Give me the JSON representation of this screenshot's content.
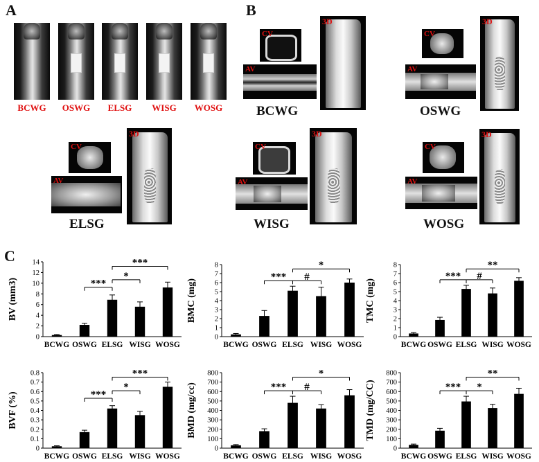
{
  "panels": {
    "a": "A",
    "b": "B",
    "c": "C"
  },
  "xray_groups": [
    "BCWG",
    "OSWG",
    "ELSG",
    "WISG",
    "WOSG"
  ],
  "ct_tags": {
    "cv": "CV",
    "av": "AV",
    "d3": "3D"
  },
  "ct_groups": [
    "BCWG",
    "OSWG",
    "ELSG",
    "WISG",
    "WOSG"
  ],
  "colors": {
    "label_red": "#e01010",
    "bar": "#000000"
  },
  "chart_data": [
    {
      "type": "bar",
      "ylabel": "BV (mm3)",
      "categories": [
        "BCWG",
        "OSWG",
        "ELSG",
        "WISG",
        "WOSG"
      ],
      "values": [
        0.3,
        2.2,
        6.9,
        5.6,
        9.2
      ],
      "errors": [
        0.1,
        0.3,
        0.9,
        0.9,
        1.0
      ],
      "ylim": [
        0,
        14
      ],
      "yticks": [
        0,
        2,
        4,
        6,
        8,
        10,
        12,
        14
      ],
      "ytick_labels": [
        "0",
        "2",
        "4",
        "6",
        "8",
        "10",
        "12",
        "14"
      ],
      "brackets": [
        {
          "from": 1,
          "to": 2,
          "label": "***"
        },
        {
          "from": 2,
          "to": 3,
          "label": "*"
        },
        {
          "from": 2,
          "to": 4,
          "label": "***"
        }
      ]
    },
    {
      "type": "bar",
      "ylabel": "BMC (mg)",
      "categories": [
        "BCWG",
        "OSWG",
        "ELSG",
        "WISG",
        "WOSG"
      ],
      "values": [
        0.25,
        2.3,
        5.1,
        4.5,
        6.0
      ],
      "errors": [
        0.1,
        0.6,
        0.5,
        1.0,
        0.4
      ],
      "ylim": [
        0,
        8
      ],
      "yticks": [
        0,
        1,
        2,
        3,
        4,
        5,
        6,
        7,
        8
      ],
      "ytick_labels": [
        "0",
        "1",
        "2",
        "3",
        "4",
        "5",
        "6",
        "7",
        "8"
      ],
      "brackets": [
        {
          "from": 1,
          "to": 2,
          "label": "***"
        },
        {
          "from": 2,
          "to": 3,
          "label": "#"
        },
        {
          "from": 2,
          "to": 4,
          "label": "*"
        }
      ]
    },
    {
      "type": "bar",
      "ylabel": "TMC (mg)",
      "categories": [
        "BCWG",
        "OSWG",
        "ELSG",
        "WISG",
        "WOSG"
      ],
      "values": [
        0.35,
        1.85,
        5.3,
        4.8,
        6.2
      ],
      "errors": [
        0.1,
        0.3,
        0.4,
        0.6,
        0.35
      ],
      "ylim": [
        0,
        8
      ],
      "yticks": [
        0,
        1,
        2,
        3,
        4,
        5,
        6,
        7,
        8
      ],
      "ytick_labels": [
        "0",
        "1",
        "2",
        "3",
        "4",
        "5",
        "6",
        "7",
        "8"
      ],
      "brackets": [
        {
          "from": 1,
          "to": 2,
          "label": "***"
        },
        {
          "from": 2,
          "to": 3,
          "label": "#"
        },
        {
          "from": 2,
          "to": 4,
          "label": "**"
        }
      ]
    },
    {
      "type": "bar",
      "ylabel": "BVF (%)",
      "categories": [
        "BCWG",
        "OSWG",
        "ELSG",
        "WISG",
        "WOSG"
      ],
      "values": [
        0.02,
        0.17,
        0.42,
        0.35,
        0.65
      ],
      "errors": [
        0.005,
        0.02,
        0.03,
        0.04,
        0.05
      ],
      "ylim": [
        0,
        0.8
      ],
      "yticks": [
        0,
        0.1,
        0.2,
        0.3,
        0.4,
        0.5,
        0.6,
        0.7,
        0.8
      ],
      "ytick_labels": [
        "0",
        "0.1",
        "0.2",
        "0.3",
        "0.4",
        "0.5",
        "0.6",
        "0.7",
        "0.8"
      ],
      "brackets": [
        {
          "from": 1,
          "to": 2,
          "label": "***"
        },
        {
          "from": 2,
          "to": 3,
          "label": "*"
        },
        {
          "from": 2,
          "to": 4,
          "label": "***"
        }
      ]
    },
    {
      "type": "bar",
      "ylabel": "BMD (mg/cc)",
      "categories": [
        "BCWG",
        "OSWG",
        "ELSG",
        "WISG",
        "WOSG"
      ],
      "values": [
        30,
        180,
        480,
        420,
        560
      ],
      "errors": [
        8,
        25,
        70,
        40,
        60
      ],
      "ylim": [
        0,
        800
      ],
      "yticks": [
        0,
        100,
        200,
        300,
        400,
        500,
        600,
        700,
        800
      ],
      "ytick_labels": [
        "0",
        "100",
        "200",
        "300",
        "400",
        "500",
        "600",
        "700",
        "800"
      ],
      "brackets": [
        {
          "from": 1,
          "to": 2,
          "label": "***"
        },
        {
          "from": 2,
          "to": 3,
          "label": "#"
        },
        {
          "from": 2,
          "to": 4,
          "label": "*"
        }
      ]
    },
    {
      "type": "bar",
      "ylabel": "TMD (mg/CC)",
      "categories": [
        "BCWG",
        "OSWG",
        "ELSG",
        "WISG",
        "WOSG"
      ],
      "values": [
        35,
        185,
        495,
        425,
        575
      ],
      "errors": [
        8,
        25,
        55,
        40,
        60
      ],
      "ylim": [
        0,
        800
      ],
      "yticks": [
        0,
        100,
        200,
        300,
        400,
        500,
        600,
        700,
        800
      ],
      "ytick_labels": [
        "0",
        "100",
        "200",
        "300",
        "400",
        "500",
        "600",
        "700",
        "800"
      ],
      "brackets": [
        {
          "from": 1,
          "to": 2,
          "label": "***"
        },
        {
          "from": 2,
          "to": 3,
          "label": "*"
        },
        {
          "from": 2,
          "to": 4,
          "label": "**"
        }
      ]
    }
  ]
}
